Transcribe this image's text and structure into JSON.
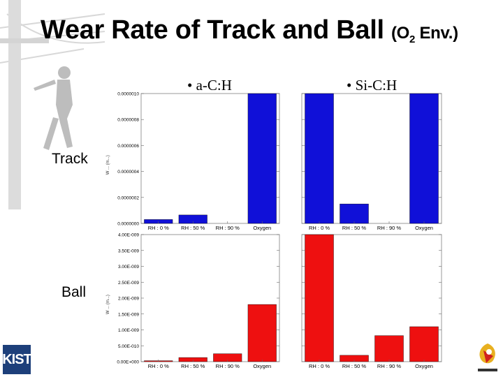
{
  "title": {
    "main": "Wear Rate of Track and Ball",
    "env_open": "(O",
    "env_sub": "2",
    "env_close": " Env.)"
  },
  "column_labels": [
    "• a-C:H",
    "• Si-C:H"
  ],
  "row_labels": [
    "Track",
    "Ball"
  ],
  "logos": {
    "left": "KIST",
    "left_color": "#1d3f7a"
  },
  "colors": {
    "track": "#1010d8",
    "ball": "#ee1010"
  },
  "chart_data": [
    {
      "type": "bar",
      "name": "a-C:H Track",
      "color": "#1010d8",
      "categories": [
        "RH : 0 %",
        "RH : 50 %",
        "RH : 90 %",
        "Oxygen"
      ],
      "values": [
        3e-08,
        6.5e-08,
        0,
        1.05e-06
      ],
      "ylim": [
        0,
        1e-06
      ],
      "yticks": [
        "0.0000000",
        "0.0000002",
        "0.0000004",
        "0.0000006",
        "0.0000008",
        "0.0000010"
      ],
      "ylabel": "W ... (m...)"
    },
    {
      "type": "bar",
      "name": "Si-C:H Track",
      "color": "#1010d8",
      "categories": [
        "RH : 0 %",
        "RH : 50 %",
        "RH : 90 %",
        "Oxygen"
      ],
      "values": [
        1.05e-06,
        1.5e-07,
        0,
        1.05e-06
      ],
      "ylim": [
        0,
        1e-06
      ],
      "yticks": [],
      "ylabel": ""
    },
    {
      "type": "bar",
      "name": "a-C:H Ball",
      "color": "#ee1010",
      "categories": [
        "RH : 0 %",
        "RH : 50 %",
        "RH : 90 %",
        "Oxygen"
      ],
      "values": [
        3e-11,
        1.3e-10,
        2.5e-10,
        1.8e-09
      ],
      "ylim": [
        0,
        4e-09
      ],
      "yticks": [
        "0.00E+000",
        "5.00E-010",
        "1.00E-009",
        "1.50E-009",
        "2.00E-009",
        "2.50E-009",
        "3.00E-009",
        "3.50E-009",
        "4.00E-009"
      ],
      "ylabel": "W ... (m...)"
    },
    {
      "type": "bar",
      "name": "Si-C:H Ball",
      "color": "#ee1010",
      "categories": [
        "RH : 0 %",
        "RH : 50 %",
        "RH : 90 %",
        "Oxygen"
      ],
      "values": [
        4.1e-09,
        2e-10,
        8.2e-10,
        1.1e-09
      ],
      "ylim": [
        0,
        4e-09
      ],
      "yticks": [],
      "ylabel": ""
    }
  ]
}
